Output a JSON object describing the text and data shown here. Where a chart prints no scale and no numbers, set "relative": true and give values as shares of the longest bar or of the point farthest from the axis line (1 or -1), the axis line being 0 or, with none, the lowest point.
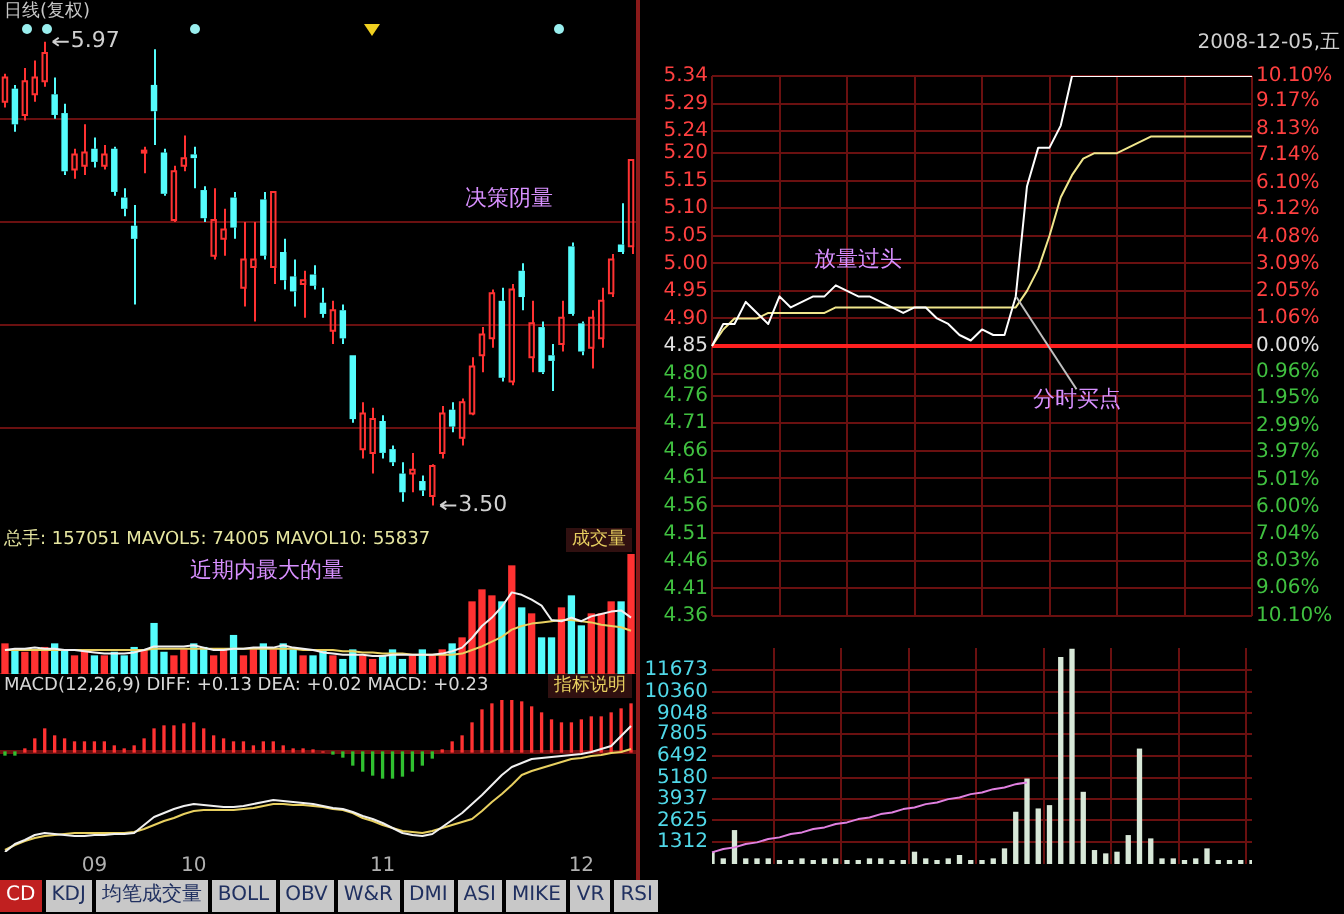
{
  "chart_data": [
    {
      "type": "candlestick",
      "title": "日线(复权)",
      "categories": [
        null,
        null,
        null,
        null,
        null,
        null,
        null,
        null,
        null,
        "09",
        null,
        null,
        null,
        null,
        null,
        null,
        null,
        null,
        null,
        "10",
        null,
        null,
        null,
        null,
        null,
        null,
        null,
        null,
        null,
        null,
        null,
        null,
        null,
        null,
        null,
        null,
        null,
        null,
        "11",
        null,
        null,
        null,
        null,
        null,
        null,
        null,
        null,
        null,
        null,
        null,
        null,
        null,
        null,
        null,
        null,
        null,
        null,
        null,
        "12",
        null,
        null,
        null,
        null,
        null
      ],
      "ohlc": [
        [
          5.65,
          5.8,
          5.62,
          5.78
        ],
        [
          5.72,
          5.74,
          5.49,
          5.53
        ],
        [
          5.58,
          5.83,
          5.55,
          5.76
        ],
        [
          5.69,
          5.87,
          5.65,
          5.78
        ],
        [
          5.76,
          5.97,
          5.73,
          5.91
        ],
        [
          5.69,
          5.78,
          5.56,
          5.58
        ],
        [
          5.59,
          5.64,
          5.26,
          5.28
        ],
        [
          5.29,
          5.4,
          5.24,
          5.37
        ],
        [
          5.31,
          5.53,
          5.26,
          5.38
        ],
        [
          5.4,
          5.46,
          5.3,
          5.33
        ],
        [
          5.31,
          5.42,
          5.29,
          5.37
        ],
        [
          5.4,
          5.41,
          5.15,
          5.17
        ],
        [
          5.14,
          5.19,
          5.04,
          5.08
        ],
        [
          4.99,
          5.1,
          4.57,
          4.92
        ],
        [
          5.38,
          5.41,
          5.27,
          5.39
        ],
        [
          5.74,
          5.93,
          5.42,
          5.6
        ],
        [
          5.38,
          5.4,
          5.15,
          5.16
        ],
        [
          5.02,
          5.31,
          5.01,
          5.28
        ],
        [
          5.31,
          5.47,
          5.28,
          5.35
        ],
        [
          5.37,
          5.41,
          5.19,
          5.35
        ],
        [
          5.18,
          5.2,
          5.01,
          5.03
        ],
        [
          4.83,
          5.19,
          4.81,
          5.02
        ],
        [
          4.92,
          5.08,
          4.83,
          4.97
        ],
        [
          5.14,
          5.17,
          4.92,
          4.98
        ],
        [
          4.66,
          5.01,
          4.56,
          4.81
        ],
        [
          4.77,
          5.01,
          4.48,
          4.81
        ],
        [
          5.13,
          5.17,
          4.81,
          4.83
        ],
        [
          4.77,
          5.17,
          4.68,
          5.17
        ],
        [
          4.85,
          4.92,
          4.65,
          4.7
        ],
        [
          4.72,
          4.81,
          4.56,
          4.64
        ],
        [
          4.68,
          4.75,
          4.5,
          4.7
        ],
        [
          4.73,
          4.78,
          4.65,
          4.67
        ],
        [
          4.58,
          4.66,
          4.5,
          4.52
        ],
        [
          4.43,
          4.59,
          4.36,
          4.54
        ],
        [
          4.54,
          4.57,
          4.36,
          4.39
        ],
        [
          4.3,
          4.3,
          3.94,
          3.96
        ],
        [
          3.8,
          4.05,
          3.75,
          3.99
        ],
        [
          3.78,
          4.02,
          3.67,
          3.96
        ],
        [
          3.95,
          3.98,
          3.75,
          3.78
        ],
        [
          3.8,
          3.82,
          3.71,
          3.73
        ],
        [
          3.67,
          3.73,
          3.52,
          3.57
        ],
        [
          3.67,
          3.78,
          3.57,
          3.69
        ],
        [
          3.63,
          3.66,
          3.55,
          3.58
        ],
        [
          3.55,
          3.72,
          3.5,
          3.71
        ],
        [
          3.78,
          4.03,
          3.75,
          3.99
        ],
        [
          4.01,
          4.05,
          3.89,
          3.92
        ],
        [
          3.86,
          4.07,
          3.82,
          4.05
        ],
        [
          3.99,
          4.29,
          3.98,
          4.24
        ],
        [
          4.3,
          4.45,
          4.21,
          4.41
        ],
        [
          4.39,
          4.65,
          4.34,
          4.63
        ],
        [
          4.59,
          4.66,
          4.16,
          4.18
        ],
        [
          4.16,
          4.68,
          4.14,
          4.65
        ],
        [
          4.75,
          4.79,
          4.54,
          4.61
        ],
        [
          4.29,
          4.59,
          4.21,
          4.47
        ],
        [
          4.45,
          4.48,
          4.2,
          4.21
        ],
        [
          4.3,
          4.36,
          4.11,
          4.27
        ],
        [
          4.36,
          4.59,
          4.32,
          4.5
        ],
        [
          4.88,
          4.9,
          4.51,
          4.52
        ],
        [
          4.47,
          4.48,
          4.3,
          4.32
        ],
        [
          4.34,
          4.54,
          4.23,
          4.5
        ],
        [
          4.39,
          4.66,
          4.34,
          4.59
        ],
        [
          4.63,
          4.84,
          4.61,
          4.81
        ],
        [
          4.89,
          5.11,
          4.84,
          4.85
        ],
        [
          4.88,
          5.34,
          4.84,
          5.34
        ]
      ],
      "colors": [
        "#ff3232",
        "#54fcfc",
        "#ff3232",
        "#ff3232",
        "#ff3232",
        "#54fcfc",
        "#54fcfc",
        "#ff3232",
        "#ff3232",
        "#54fcfc",
        "#ff3232",
        "#54fcfc",
        "#54fcfc",
        "#54fcfc",
        "#ff3232",
        "#54fcfc",
        "#54fcfc",
        "#ff3232",
        "#ff3232",
        "#54fcfc",
        "#54fcfc",
        "#ff3232",
        "#ff3232",
        "#54fcfc",
        "#ff3232",
        "#ff3232",
        "#54fcfc",
        "#ff3232",
        "#54fcfc",
        "#54fcfc",
        "#ff3232",
        "#54fcfc",
        "#54fcfc",
        "#ff3232",
        "#54fcfc",
        "#54fcfc",
        "#ff3232",
        "#ff3232",
        "#54fcfc",
        "#54fcfc",
        "#54fcfc",
        "#ff3232",
        "#54fcfc",
        "#ff3232",
        "#ff3232",
        "#54fcfc",
        "#ff3232",
        "#ff3232",
        "#ff3232",
        "#ff3232",
        "#54fcfc",
        "#ff3232",
        "#54fcfc",
        "#ff3232",
        "#54fcfc",
        "#54fcfc",
        "#ff3232",
        "#54fcfc",
        "#54fcfc",
        "#ff3232",
        "#ff3232",
        "#ff3232",
        "#54fcfc",
        "#ff3232"
      ],
      "yticks": [
        {
          "value": 5.56,
          "label": null
        },
        {
          "value": 5.01,
          "label": null
        },
        {
          "value": 4.46,
          "label": null
        },
        {
          "value": 3.91,
          "label": null
        }
      ],
      "grid": "y",
      "tick_labels": false,
      "annotations": [
        "5.97",
        "3.50",
        "决策阴量"
      ]
    },
    {
      "type": "bar",
      "title": "总手: 157051 MAVOL5: 74005 MAVOL10: 55837",
      "relative": true,
      "tick_labels": false,
      "categories": [
        null,
        null,
        null,
        null,
        null,
        null,
        null,
        null,
        null,
        "09",
        null,
        null,
        null,
        null,
        null,
        null,
        null,
        null,
        null,
        "10",
        null,
        null,
        null,
        null,
        null,
        null,
        null,
        null,
        null,
        null,
        null,
        null,
        null,
        null,
        null,
        null,
        null,
        null,
        "11",
        null,
        null,
        null,
        null,
        null,
        null,
        null,
        null,
        null,
        null,
        null,
        null,
        null,
        null,
        null,
        null,
        null,
        null,
        null,
        "12",
        null,
        null,
        null,
        null,
        null
      ],
      "series": [
        {
          "type": "bar",
          "values": [
            0.25,
            0.2,
            0.18,
            0.2,
            0.22,
            0.25,
            0.2,
            0.15,
            0.2,
            0.15,
            0.15,
            0.18,
            0.15,
            0.22,
            0.2,
            0.42,
            0.18,
            0.15,
            0.2,
            0.25,
            0.22,
            0.15,
            0.2,
            0.32,
            0.15,
            0.2,
            0.25,
            0.2,
            0.25,
            0.2,
            0.15,
            0.15,
            0.2,
            0.15,
            0.12,
            0.2,
            0.15,
            0.12,
            0.15,
            0.2,
            0.12,
            0.15,
            0.2,
            0.15,
            0.2,
            0.25,
            0.3,
            0.6,
            0.7,
            0.65,
            0.6,
            0.9,
            0.55,
            0.5,
            0.3,
            0.3,
            0.55,
            0.65,
            0.4,
            0.5,
            0.5,
            0.6,
            0.6,
            1
          ],
          "colors": [
            "#ff3232",
            "#54fcfc",
            "#ff3232",
            "#ff3232",
            "#ff3232",
            "#54fcfc",
            "#54fcfc",
            "#ff3232",
            "#ff3232",
            "#54fcfc",
            "#ff3232",
            "#54fcfc",
            "#54fcfc",
            "#54fcfc",
            "#ff3232",
            "#54fcfc",
            "#54fcfc",
            "#ff3232",
            "#ff3232",
            "#54fcfc",
            "#54fcfc",
            "#ff3232",
            "#ff3232",
            "#54fcfc",
            "#ff3232",
            "#ff3232",
            "#54fcfc",
            "#ff3232",
            "#54fcfc",
            "#54fcfc",
            "#ff3232",
            "#54fcfc",
            "#54fcfc",
            "#ff3232",
            "#54fcfc",
            "#54fcfc",
            "#ff3232",
            "#ff3232",
            "#54fcfc",
            "#54fcfc",
            "#54fcfc",
            "#ff3232",
            "#54fcfc",
            "#ff3232",
            "#ff3232",
            "#54fcfc",
            "#ff3232",
            "#ff3232",
            "#ff3232",
            "#ff3232",
            "#54fcfc",
            "#ff3232",
            "#54fcfc",
            "#ff3232",
            "#54fcfc",
            "#54fcfc",
            "#ff3232",
            "#54fcfc",
            "#54fcfc",
            "#ff3232",
            "#ff3232",
            "#ff3232",
            "#54fcfc",
            "#ff3232"
          ]
        },
        {
          "type": "line",
          "color": "#f0f0f0",
          "values": [
            0.2,
            0.21,
            0.21,
            0.22,
            0.21,
            0.21,
            0.2,
            0.2,
            0.19,
            0.18,
            0.17,
            0.17,
            0.17,
            0.18,
            0.2,
            0.23,
            0.23,
            0.23,
            0.23,
            0.24,
            0.22,
            0.2,
            0.2,
            0.21,
            0.21,
            0.22,
            0.22,
            0.22,
            0.24,
            0.22,
            0.21,
            0.2,
            0.18,
            0.17,
            0.16,
            0.16,
            0.16,
            0.15,
            0.15,
            0.16,
            0.16,
            0.16,
            0.16,
            0.16,
            0.17,
            0.19,
            0.22,
            0.3,
            0.4,
            0.47,
            0.56,
            0.68,
            0.66,
            0.62,
            0.57,
            0.45,
            0.44,
            0.47,
            0.44,
            0.48,
            0.5,
            0.52,
            0.53,
            0.47
          ]
        },
        {
          "type": "line",
          "color": "#e8d060",
          "values": [
            0.2,
            0.2,
            0.2,
            0.2,
            0.2,
            0.2,
            0.2,
            0.2,
            0.2,
            0.2,
            0.2,
            0.2,
            0.2,
            0.2,
            0.2,
            0.21,
            0.21,
            0.21,
            0.21,
            0.21,
            0.21,
            0.21,
            0.21,
            0.21,
            0.21,
            0.21,
            0.21,
            0.21,
            0.21,
            0.21,
            0.2,
            0.2,
            0.2,
            0.2,
            0.19,
            0.19,
            0.18,
            0.18,
            0.17,
            0.17,
            0.17,
            0.16,
            0.16,
            0.16,
            0.16,
            0.16,
            0.17,
            0.2,
            0.23,
            0.27,
            0.31,
            0.37,
            0.4,
            0.42,
            0.43,
            0.44,
            0.45,
            0.45,
            0.44,
            0.43,
            0.41,
            0.4,
            0.39,
            0.36
          ]
        }
      ],
      "annotations": [
        "成交量",
        "近期内最大的量"
      ]
    },
    {
      "type": "bar",
      "title": "MACD(12,26,9) DIFF: +0.13 DEA: +0.02 MACD: +0.23",
      "relative": true,
      "tick_labels": "x",
      "categories": [
        null,
        null,
        null,
        null,
        null,
        null,
        null,
        null,
        null,
        "09",
        null,
        null,
        null,
        null,
        null,
        null,
        null,
        null,
        null,
        "10",
        null,
        null,
        null,
        null,
        null,
        null,
        null,
        null,
        null,
        null,
        null,
        null,
        null,
        null,
        null,
        null,
        null,
        null,
        "11",
        null,
        null,
        null,
        null,
        null,
        null,
        null,
        null,
        null,
        null,
        null,
        null,
        null,
        null,
        null,
        null,
        null,
        null,
        null,
        "12",
        null,
        null,
        null,
        null,
        null
      ],
      "series": [
        {
          "type": "bar",
          "values": [
            -0.03,
            -0.03,
            0.03,
            0.13,
            0.23,
            0.16,
            0.13,
            0.1,
            0.1,
            0.1,
            0.1,
            0.06,
            0.03,
            0.06,
            0.13,
            0.23,
            0.26,
            0.26,
            0.28,
            0.29,
            0.23,
            0.16,
            0.13,
            0.1,
            0.1,
            0.06,
            0.1,
            0.1,
            0.06,
            0.03,
            0.03,
            0.02,
            0,
            -0.02,
            -0.05,
            -0.13,
            -0.19,
            -0.23,
            -0.26,
            -0.26,
            -0.24,
            -0.19,
            -0.13,
            -0.06,
            0.02,
            0.1,
            0.16,
            0.29,
            0.42,
            0.48,
            0.52,
            0.52,
            0.5,
            0.45,
            0.39,
            0.32,
            0.29,
            0.29,
            0.32,
            0.35,
            0.35,
            0.39,
            0.43,
            0.48
          ],
          "colors": [
            "#30c030",
            "#30c030",
            "#ff3232",
            "#ff3232",
            "#ff3232",
            "#ff3232",
            "#ff3232",
            "#ff3232",
            "#ff3232",
            "#ff3232",
            "#ff3232",
            "#ff3232",
            "#ff3232",
            "#ff3232",
            "#ff3232",
            "#ff3232",
            "#ff3232",
            "#ff3232",
            "#ff3232",
            "#ff3232",
            "#ff3232",
            "#ff3232",
            "#ff3232",
            "#ff3232",
            "#ff3232",
            "#ff3232",
            "#ff3232",
            "#ff3232",
            "#ff3232",
            "#ff3232",
            "#ff3232",
            "#ff3232",
            "#ff3232",
            "#30c030",
            "#30c030",
            "#30c030",
            "#30c030",
            "#30c030",
            "#30c030",
            "#30c030",
            "#30c030",
            "#30c030",
            "#30c030",
            "#30c030",
            "#ff3232",
            "#ff3232",
            "#ff3232",
            "#ff3232",
            "#ff3232",
            "#ff3232",
            "#ff3232",
            "#ff3232",
            "#ff3232",
            "#ff3232",
            "#ff3232",
            "#ff3232",
            "#ff3232",
            "#ff3232",
            "#ff3232",
            "#ff3232",
            "#ff3232",
            "#ff3232",
            "#ff3232",
            "#ff3232"
          ]
        },
        {
          "type": "line",
          "color": "#f0f0f0",
          "values": [
            -1,
            -0.92,
            -0.88,
            -0.83,
            -0.81,
            -0.82,
            -0.83,
            -0.84,
            -0.84,
            -0.83,
            -0.83,
            -0.82,
            -0.82,
            -0.81,
            -0.73,
            -0.65,
            -0.61,
            -0.57,
            -0.54,
            -0.52,
            -0.53,
            -0.54,
            -0.55,
            -0.55,
            -0.54,
            -0.52,
            -0.5,
            -0.48,
            -0.49,
            -0.5,
            -0.51,
            -0.52,
            -0.54,
            -0.56,
            -0.57,
            -0.6,
            -0.64,
            -0.67,
            -0.71,
            -0.76,
            -0.81,
            -0.83,
            -0.84,
            -0.82,
            -0.75,
            -0.68,
            -0.61,
            -0.52,
            -0.43,
            -0.33,
            -0.23,
            -0.15,
            -0.11,
            -0.07,
            -0.06,
            -0.05,
            -0.04,
            -0.03,
            -0.02,
            0,
            0.03,
            0.06,
            0.16,
            0.26
          ]
        },
        {
          "type": "line",
          "color": "#e8d060",
          "values": [
            -0.98,
            -0.93,
            -0.89,
            -0.86,
            -0.84,
            -0.83,
            -0.82,
            -0.81,
            -0.81,
            -0.81,
            -0.81,
            -0.81,
            -0.81,
            -0.8,
            -0.77,
            -0.73,
            -0.69,
            -0.66,
            -0.62,
            -0.59,
            -0.58,
            -0.58,
            -0.58,
            -0.58,
            -0.57,
            -0.56,
            -0.54,
            -0.52,
            -0.52,
            -0.53,
            -0.53,
            -0.54,
            -0.55,
            -0.57,
            -0.58,
            -0.61,
            -0.66,
            -0.69,
            -0.73,
            -0.76,
            -0.79,
            -0.8,
            -0.81,
            -0.79,
            -0.76,
            -0.73,
            -0.7,
            -0.67,
            -0.59,
            -0.5,
            -0.42,
            -0.33,
            -0.23,
            -0.19,
            -0.16,
            -0.13,
            -0.1,
            -0.07,
            -0.06,
            -0.04,
            -0.03,
            -0.01,
            0,
            0.03
          ]
        }
      ],
      "ref_lines": [
        {
          "axis": "y",
          "value": 0,
          "color": "#6a1010"
        }
      ],
      "annotations": [
        "指标说明",
        "CD",
        "KDJ",
        "均笔成交量",
        "BOLL",
        "OBV",
        "W&R",
        "DMI",
        "ASI",
        "MIKE",
        "VR",
        "RSI"
      ]
    },
    {
      "type": "line",
      "subtitle": "2008-12-05,五",
      "grid": true,
      "tick_labels": "y",
      "categories": [
        null,
        null,
        null,
        null,
        null,
        null,
        null,
        null,
        null,
        null,
        null,
        null,
        null,
        null,
        null,
        null,
        null,
        null,
        null,
        null,
        null,
        null,
        null,
        null,
        null,
        null,
        null,
        null,
        null,
        null,
        null,
        null,
        null,
        null,
        null,
        null,
        null,
        null,
        null,
        null,
        null,
        null,
        null,
        null,
        null,
        null,
        null,
        null,
        null
      ],
      "ylim": [
        4.36,
        5.34
      ],
      "yticks": [
        5.34,
        5.29,
        5.24,
        {
          "value": 5.2,
          "label": "5.20"
        },
        5.15,
        {
          "value": 5.1,
          "label": "5.10"
        },
        5.05,
        {
          "value": 5,
          "label": "5.00"
        },
        4.95,
        {
          "value": 4.9,
          "label": "4.90"
        },
        4.85,
        {
          "value": 4.8,
          "label": "4.80"
        },
        4.76,
        4.71,
        4.66,
        4.61,
        4.56,
        4.51,
        4.46,
        4.41,
        4.36
      ],
      "y2lim": [
        -10.1,
        10.1
      ],
      "y2ticks": [
        {
          "value": 10.1,
          "label": "10.10%"
        },
        {
          "value": 9.17,
          "label": "9.17%"
        },
        {
          "value": 8.13,
          "label": "8.13%"
        },
        {
          "value": 7.14,
          "label": "7.14%"
        },
        {
          "value": 6.1,
          "label": "6.10%"
        },
        {
          "value": 5.12,
          "label": "5.12%"
        },
        {
          "value": 4.08,
          "label": "4.08%"
        },
        {
          "value": 3.09,
          "label": "3.09%"
        },
        {
          "value": 2.05,
          "label": "2.05%"
        },
        {
          "value": 1.06,
          "label": "1.06%"
        },
        {
          "value": 0,
          "label": "0.00%"
        },
        {
          "value": -0.96,
          "label": "0.96%"
        },
        {
          "value": -1.95,
          "label": "1.95%"
        },
        {
          "value": -2.99,
          "label": "2.99%"
        },
        {
          "value": -3.97,
          "label": "3.97%"
        },
        {
          "value": -5.01,
          "label": "5.01%"
        },
        {
          "value": -6,
          "label": "6.00%"
        },
        {
          "value": -7.04,
          "label": "7.04%"
        },
        {
          "value": -8.03,
          "label": "8.03%"
        },
        {
          "value": -9.06,
          "label": "9.06%"
        },
        {
          "value": -10.1,
          "label": "10.10%"
        }
      ],
      "ref_lines": [
        {
          "axis": "y",
          "value": 4.85,
          "color": "#ff2020"
        }
      ],
      "series": [
        {
          "color": "#ffffff",
          "values": [
            4.85,
            4.89,
            4.89,
            4.93,
            4.91,
            4.89,
            4.94,
            4.92,
            4.93,
            4.94,
            4.94,
            4.96,
            4.95,
            4.94,
            4.94,
            4.93,
            4.92,
            4.91,
            4.92,
            4.92,
            4.9,
            4.89,
            4.87,
            4.86,
            4.88,
            4.87,
            4.87,
            4.94,
            5.14,
            5.21,
            5.21,
            5.25,
            5.34,
            5.34,
            5.34,
            5.34,
            5.34,
            5.34,
            5.34,
            5.34,
            5.34,
            5.34,
            5.34,
            5.34,
            5.34,
            5.34,
            5.34,
            5.34,
            5.34
          ]
        },
        {
          "color": "#f0e68c",
          "values": [
            4.85,
            4.88,
            4.9,
            4.9,
            4.9,
            4.91,
            4.91,
            4.91,
            4.91,
            4.91,
            4.91,
            4.92,
            4.92,
            4.92,
            4.92,
            4.92,
            4.92,
            4.92,
            4.92,
            4.92,
            4.92,
            4.92,
            4.92,
            4.92,
            4.92,
            4.92,
            4.92,
            4.92,
            4.95,
            4.99,
            5.05,
            5.12,
            5.16,
            5.19,
            5.2,
            5.2,
            5.2,
            5.21,
            5.22,
            5.23,
            5.23,
            5.23,
            5.23,
            5.23,
            5.23,
            5.23,
            5.23,
            5.23,
            5.23
          ]
        }
      ],
      "annotations": [
        "放量过头",
        "分时买点"
      ]
    },
    {
      "type": "bar",
      "grid": true,
      "tick_labels": "y",
      "categories": [
        null,
        null,
        null,
        null,
        null,
        null,
        null,
        null,
        null,
        null,
        null,
        null,
        null,
        null,
        null,
        null,
        null,
        null,
        null,
        null,
        null,
        null,
        null,
        null,
        null,
        null,
        null,
        null,
        null,
        null,
        null,
        null,
        null,
        null,
        null,
        null,
        null,
        null,
        null,
        null,
        null,
        null,
        null,
        null,
        null,
        null,
        null,
        null,
        null
      ],
      "ylim": [
        0,
        12985
      ],
      "yticks": [
        1312,
        2625,
        3937,
        5180,
        6492,
        7805,
        9048,
        10360,
        11673
      ],
      "series": [
        {
          "type": "bar",
          "color": "#d8e8d8",
          "values": [
            700,
            300,
            2000,
            300,
            300,
            300,
            200,
            200,
            300,
            200,
            300,
            300,
            200,
            200,
            300,
            300,
            200,
            200,
            700,
            300,
            200,
            300,
            500,
            200,
            200,
            300,
            900,
            3100,
            5100,
            3300,
            3500,
            12400,
            12900,
            4300,
            800,
            600,
            700,
            1700,
            6900,
            1500,
            300,
            300,
            200,
            300,
            900,
            200,
            200,
            200,
            200
          ]
        },
        {
          "type": "line",
          "color": "#e080e0",
          "values": [
            700,
            900,
            1000,
            1200,
            1300,
            1500,
            1600,
            1800,
            1900,
            2100,
            2200,
            2400,
            2500,
            2700,
            2800,
            3000,
            3100,
            3300,
            3400,
            3600,
            3700,
            3900,
            4000,
            4200,
            4300,
            4500,
            4600,
            4800,
            4900,
            null,
            null,
            null,
            null,
            null,
            null,
            null,
            null,
            null,
            null,
            null,
            null,
            null,
            null,
            null,
            null,
            null,
            null,
            null,
            null
          ]
        }
      ]
    }
  ]
}
